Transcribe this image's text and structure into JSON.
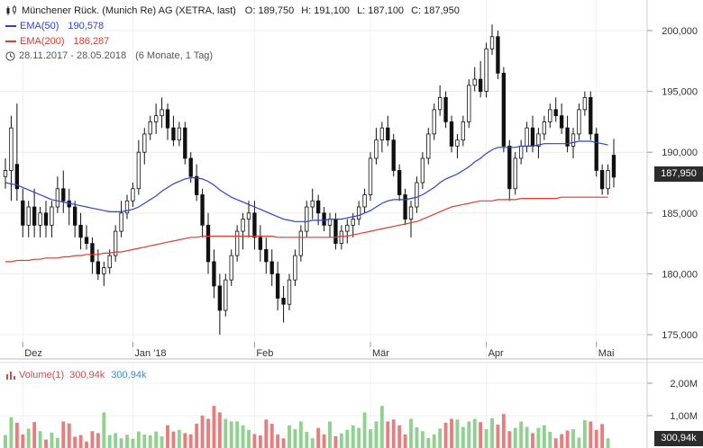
{
  "header": {
    "title": "Münchener Rück. (Munich Re) AG (XETRA, last)",
    "open": "O: 189,750",
    "high": "H: 191,100",
    "low": "L: 187,100",
    "close": "C: 187,950",
    "ema50_label": "EMA(50)",
    "ema50_value": "190,578",
    "ema200_label": "EMA(200)",
    "ema200_value": "186,287",
    "range": "28.11.2017 - 28.05.2018",
    "range_note": "(6 Monate, 1 Tag)",
    "last_badge": "187,950"
  },
  "volume": {
    "label": "Volume(1)",
    "v1": "300,94k",
    "v2": "300,94k",
    "badge": "300,94k",
    "axis_ticks": [
      "2,00M",
      "1,00M"
    ]
  },
  "colors": {
    "ema50": "#2b41d6",
    "ema200": "#e03b2e",
    "candle": "#111111",
    "vol_up": "#8fd18f",
    "vol_down": "#ea7c7c",
    "vol_text_blue": "#3a8fbf",
    "vol_text_red": "#d24a4a"
  },
  "chart_data": {
    "type": "candlestick",
    "title": "Münchener Rück. (Munich Re) AG (XETRA, last)",
    "y_ticks": [
      175000,
      180000,
      185000,
      190000,
      195000,
      200000
    ],
    "y_tick_labels": [
      "175,000",
      "180,000",
      "185,000",
      "190,000",
      "195,000",
      "200,000"
    ],
    "ylim": [
      173,
      203
    ],
    "x_tick_labels": [
      "Dez",
      "Jan '18",
      "Feb",
      "Mär",
      "Apr",
      "Mai"
    ],
    "x_tick_index": [
      3,
      22,
      43,
      63,
      83,
      102
    ],
    "candles": [
      [
        188,
        189.5,
        187,
        188.5
      ],
      [
        188.5,
        193,
        186,
        192
      ],
      [
        189,
        194,
        186,
        187
      ],
      [
        186,
        187,
        183,
        184
      ],
      [
        184,
        186,
        183,
        185.5
      ],
      [
        185.5,
        187,
        183,
        184
      ],
      [
        184,
        185.5,
        183,
        185
      ],
      [
        185,
        186,
        183,
        184
      ],
      [
        184,
        186,
        183,
        185.5
      ],
      [
        185.5,
        188,
        185,
        187
      ],
      [
        187,
        188.5,
        185,
        186
      ],
      [
        186,
        187,
        184,
        185.5
      ],
      [
        185.5,
        186,
        183,
        184
      ],
      [
        184,
        185,
        182,
        183
      ],
      [
        183,
        184,
        182,
        182.5
      ],
      [
        182.5,
        183,
        180,
        181
      ],
      [
        181,
        182,
        179.5,
        180
      ],
      [
        180,
        181,
        179,
        180.5
      ],
      [
        180.5,
        182,
        180,
        181.5
      ],
      [
        181.5,
        184,
        181,
        183.5
      ],
      [
        183.5,
        186,
        183,
        185
      ],
      [
        185,
        186.5,
        184.5,
        186
      ],
      [
        186,
        187.5,
        185.5,
        187
      ],
      [
        187,
        191,
        186.5,
        190
      ],
      [
        190,
        192,
        189,
        191.5
      ],
      [
        191.5,
        193,
        191,
        192.5
      ],
      [
        192.5,
        194,
        191.5,
        193
      ],
      [
        193,
        194.5,
        192,
        193.5
      ],
      [
        193.5,
        194,
        191,
        192
      ],
      [
        192,
        193,
        190.5,
        191
      ],
      [
        191,
        192.5,
        190.5,
        192
      ],
      [
        192,
        192.5,
        189,
        189.5
      ],
      [
        189.5,
        190,
        187.5,
        188
      ],
      [
        188,
        189,
        186,
        186.5
      ],
      [
        186.5,
        187,
        183,
        184
      ],
      [
        184,
        185,
        180,
        181
      ],
      [
        181,
        182,
        178,
        179
      ],
      [
        179,
        180,
        175,
        177
      ],
      [
        177,
        180,
        176.5,
        179.5
      ],
      [
        179.5,
        182,
        179,
        181.5
      ],
      [
        181.5,
        184,
        181,
        183.5
      ],
      [
        183.5,
        185,
        182,
        184.5
      ],
      [
        184.5,
        186,
        183,
        185
      ],
      [
        185,
        186,
        182,
        183
      ],
      [
        183,
        184,
        181,
        182
      ],
      [
        182,
        183,
        180,
        181
      ],
      [
        181,
        182,
        179,
        180
      ],
      [
        180,
        181,
        177,
        178
      ],
      [
        178,
        179,
        176,
        177.5
      ],
      [
        177.5,
        180,
        177,
        179.5
      ],
      [
        179.5,
        182,
        179,
        181.5
      ],
      [
        181.5,
        184,
        181,
        183.5
      ],
      [
        183.5,
        186,
        183,
        185.5
      ],
      [
        185.5,
        187,
        184.5,
        186
      ],
      [
        186,
        186.5,
        184,
        185
      ],
      [
        185,
        185.5,
        183.5,
        184
      ],
      [
        184,
        185,
        183,
        184.5
      ],
      [
        184.5,
        185,
        182,
        182.5
      ],
      [
        182.5,
        184,
        182,
        183.5
      ],
      [
        183.5,
        184.5,
        182.5,
        184
      ],
      [
        184,
        185,
        183,
        184.5
      ],
      [
        184.5,
        186,
        184,
        185.5
      ],
      [
        185.5,
        187,
        185,
        186.5
      ],
      [
        186.5,
        190,
        186,
        189.5
      ],
      [
        189.5,
        192,
        189,
        191
      ],
      [
        191,
        192.5,
        190,
        192
      ],
      [
        192,
        193,
        190.5,
        191
      ],
      [
        191,
        191.5,
        188,
        188.5
      ],
      [
        188.5,
        189,
        186,
        186.5
      ],
      [
        186.5,
        187,
        184,
        184.5
      ],
      [
        184.5,
        186,
        183,
        185.5
      ],
      [
        185.5,
        188,
        185,
        187.5
      ],
      [
        187.5,
        190,
        187,
        189.5
      ],
      [
        189.5,
        192,
        189,
        191.5
      ],
      [
        191.5,
        194,
        191,
        193.5
      ],
      [
        193.5,
        195.5,
        193,
        194.5
      ],
      [
        194.5,
        195,
        192,
        192.5
      ],
      [
        192.5,
        193,
        190,
        190.5
      ],
      [
        190.5,
        191.5,
        189.5,
        191
      ],
      [
        191,
        193,
        190.5,
        192.5
      ],
      [
        192.5,
        196,
        192,
        195.5
      ],
      [
        195.5,
        197,
        195,
        196
      ],
      [
        196,
        197.5,
        194.5,
        195
      ],
      [
        195,
        199,
        194.5,
        198.5
      ],
      [
        198.5,
        200.5,
        198,
        199.5
      ],
      [
        199.5,
        200,
        196,
        196.5
      ],
      [
        196.5,
        197,
        190,
        190.5
      ],
      [
        190.5,
        191,
        186,
        187
      ],
      [
        187,
        190,
        186.5,
        189.5
      ],
      [
        189.5,
        191,
        189,
        190.5
      ],
      [
        190.5,
        192.5,
        190,
        192
      ],
      [
        192,
        193,
        190,
        190.5
      ],
      [
        190.5,
        192,
        189.5,
        191.5
      ],
      [
        191.5,
        193,
        191,
        192.5
      ],
      [
        192.5,
        194,
        192,
        193.5
      ],
      [
        193.5,
        194.5,
        192.5,
        193
      ],
      [
        193,
        194,
        191.5,
        192
      ],
      [
        192,
        193,
        190,
        190.5
      ],
      [
        190.5,
        192,
        189.5,
        191.5
      ],
      [
        191.5,
        194,
        191,
        193.5
      ],
      [
        193.5,
        195,
        193,
        194.5
      ],
      [
        194.5,
        195,
        191,
        191.5
      ],
      [
        191.5,
        192,
        188,
        188.5
      ],
      [
        188.5,
        189,
        186.5,
        187
      ],
      [
        187,
        189,
        186.5,
        188.5
      ],
      [
        189.75,
        191.1,
        187.1,
        187.95
      ]
    ],
    "ema50": [
      187.5,
      187.4,
      187.3,
      187.1,
      186.9,
      186.7,
      186.5,
      186.3,
      186.1,
      186.0,
      185.9,
      185.8,
      185.7,
      185.6,
      185.5,
      185.4,
      185.3,
      185.2,
      185.1,
      185.1,
      185.1,
      185.2,
      185.3,
      185.5,
      185.8,
      186.1,
      186.4,
      186.8,
      187.1,
      187.4,
      187.6,
      187.8,
      187.9,
      187.9,
      187.8,
      187.6,
      187.3,
      186.9,
      186.6,
      186.3,
      186.1,
      185.9,
      185.7,
      185.5,
      185.3,
      185.1,
      184.9,
      184.7,
      184.5,
      184.4,
      184.3,
      184.3,
      184.3,
      184.4,
      184.4,
      184.4,
      184.5,
      184.5,
      184.5,
      184.6,
      184.7,
      184.8,
      185.0,
      185.2,
      185.5,
      185.8,
      186.0,
      186.1,
      186.1,
      186.1,
      186.2,
      186.3,
      186.5,
      186.8,
      187.1,
      187.5,
      187.8,
      188.0,
      188.2,
      188.5,
      188.8,
      189.2,
      189.5,
      189.9,
      190.2,
      190.4,
      190.4,
      190.4,
      190.4,
      190.5,
      190.5,
      190.5,
      190.6,
      190.7,
      190.7,
      190.7,
      190.7,
      190.7,
      190.8,
      190.9,
      190.9,
      190.9,
      190.8,
      190.7,
      190.6
    ],
    "ema200": [
      181.0,
      181.0,
      181.1,
      181.1,
      181.1,
      181.2,
      181.2,
      181.3,
      181.3,
      181.3,
      181.4,
      181.4,
      181.5,
      181.5,
      181.6,
      181.6,
      181.6,
      181.7,
      181.7,
      181.8,
      181.8,
      181.9,
      182.0,
      182.1,
      182.2,
      182.3,
      182.4,
      182.5,
      182.6,
      182.7,
      182.8,
      182.9,
      183.0,
      183.0,
      183.1,
      183.1,
      183.1,
      183.1,
      183.1,
      183.1,
      183.1,
      183.1,
      183.1,
      183.1,
      183.1,
      183.1,
      183.1,
      183.0,
      183.0,
      183.0,
      183.0,
      183.0,
      183.0,
      183.0,
      183.0,
      183.0,
      183.0,
      183.0,
      183.1,
      183.1,
      183.2,
      183.3,
      183.4,
      183.5,
      183.6,
      183.7,
      183.8,
      183.9,
      184.0,
      184.1,
      184.2,
      184.3,
      184.5,
      184.7,
      184.9,
      185.1,
      185.3,
      185.5,
      185.6,
      185.7,
      185.8,
      185.9,
      186.0,
      186.0,
      186.0,
      186.1,
      186.1,
      186.1,
      186.1,
      186.2,
      186.2,
      186.2,
      186.2,
      186.2,
      186.2,
      186.2,
      186.3,
      186.3,
      186.3,
      186.3,
      186.3,
      186.3,
      186.3,
      186.3,
      186.3
    ],
    "volume_k": [
      400,
      950,
      780,
      420,
      600,
      800,
      520,
      260,
      480,
      310,
      820,
      760,
      350,
      400,
      200,
      520,
      460,
      1100,
      400,
      460,
      300,
      410,
      290,
      510,
      420,
      390,
      510,
      360,
      700,
      510,
      560,
      460,
      420,
      750,
      1000,
      900,
      1300,
      1100,
      900,
      820,
      820,
      700,
      560,
      430,
      390,
      880,
      750,
      420,
      300,
      700,
      580,
      820,
      500,
      300,
      620,
      420,
      820,
      360,
      450,
      560,
      700,
      620,
      1100,
      580,
      820,
      1300,
      820,
      880,
      700,
      420,
      900,
      640,
      520,
      310,
      420,
      600,
      780,
      900,
      880,
      650,
      820,
      900,
      800,
      580,
      920,
      720,
      1050,
      520,
      620,
      820,
      650,
      460,
      620,
      700,
      500,
      300,
      430,
      540,
      580,
      320,
      860,
      820,
      560,
      740,
      300
    ]
  }
}
